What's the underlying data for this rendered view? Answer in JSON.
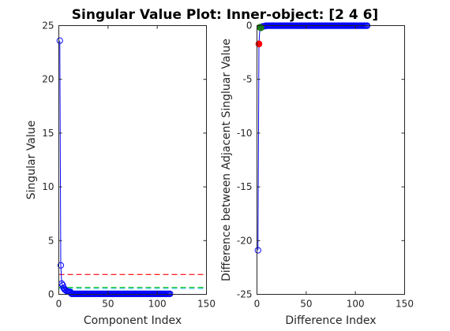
{
  "figure_title": "Singular Value Plot: Inner-object: [2 4 6]",
  "colors": {
    "marker": "#0000ff",
    "red_line": "#ff0000",
    "green_line": "#00c000",
    "cyan_line": "#00b0d8",
    "highlight_red": "#ff0000",
    "highlight_green": "#1a7a1a",
    "axis": "#262626"
  },
  "chart_data": [
    {
      "type": "scatter",
      "title": "",
      "xlabel": "Component Index",
      "ylabel": "Singular Value",
      "xlim": [
        0,
        150
      ],
      "ylim": [
        0,
        25
      ],
      "xticks": [
        "0",
        "50",
        "100",
        "150"
      ],
      "yticks": [
        "0",
        "5",
        "10",
        "15",
        "20",
        "25"
      ],
      "grid": false,
      "series": [
        {
          "marker": "open-circle",
          "line": true,
          "count": 113,
          "head_values": [
            23.6,
            2.7,
            1.0,
            0.85,
            0.6,
            0.45,
            0.38,
            0.32,
            0.28,
            0.25,
            0.22,
            0.2
          ],
          "tail_value": 0.05
        }
      ],
      "reference_lines": [
        {
          "y": 1.85,
          "style": "dashed",
          "color": "red"
        },
        {
          "y": 0.65,
          "style": "dashed",
          "color": "green"
        },
        {
          "y": 0.55,
          "style": "dashed",
          "color": "cyan"
        }
      ]
    },
    {
      "type": "scatter",
      "title": "",
      "xlabel": "Difference Index",
      "ylabel": "Difference between Adjacent Singluar Value",
      "xlim": [
        0,
        150
      ],
      "ylim": [
        -25,
        0
      ],
      "xticks": [
        "0",
        "50",
        "100",
        "150"
      ],
      "yticks": [
        "0",
        "-5",
        "-10",
        "-15",
        "-20",
        "-25"
      ],
      "grid": false,
      "series": [
        {
          "marker": "open-circle",
          "line": true,
          "count": 112,
          "head_values": [
            -20.9,
            -1.7,
            -0.15,
            -0.2,
            -0.1,
            -0.07,
            -0.06,
            -0.05
          ],
          "tail_value": -0.01
        }
      ],
      "highlighted_points": [
        {
          "x": 2,
          "y": -1.7,
          "color": "red"
        },
        {
          "x": 3,
          "y": -0.15,
          "color": "green"
        },
        {
          "x": 4,
          "y": -0.2,
          "color": "green"
        }
      ]
    }
  ]
}
